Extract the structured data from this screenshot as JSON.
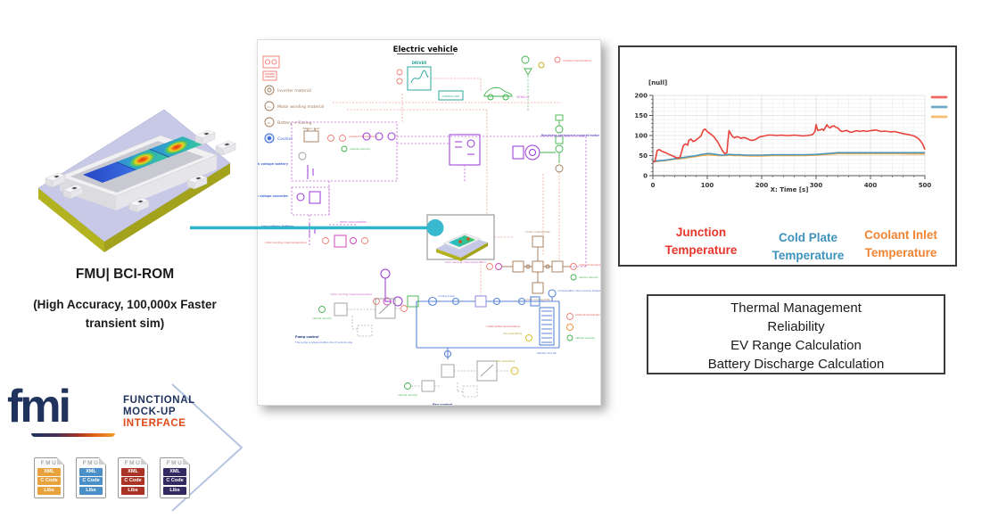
{
  "module_visual": {
    "caption": "FMU| BCI-ROM",
    "subcaption_line1": "(High Accuracy, 100,000x Faster",
    "subcaption_line2": "transient sim)"
  },
  "fmi": {
    "wordmark": "fmi",
    "tagline_line1": "FUNCTIONAL",
    "tagline_line2": "MOCK-UP",
    "tagline_line3": "INTERFACE",
    "navy_color": "#20335c",
    "accent_color": "#e04818",
    "files": [
      {
        "header": "FMU",
        "rows": [
          "XML",
          "C Code",
          "Libs"
        ],
        "color": "#e8a23c"
      },
      {
        "header": "FMU",
        "rows": [
          "XML",
          "C Code",
          "Libs"
        ],
        "color": "#4a8fc7"
      },
      {
        "header": "FMU",
        "rows": [
          "XML",
          "C Code",
          "Libs"
        ],
        "color": "#aa3326"
      },
      {
        "header": "FMU",
        "rows": [
          "XML",
          "C Code",
          "Libs"
        ],
        "color": "#322a60"
      }
    ]
  },
  "schematic": {
    "title": "Electric vehicle",
    "legend": [
      {
        "label": "Inverter material"
      },
      {
        "label": "Motor winding material"
      },
      {
        "label": "Battery + Casing"
      },
      {
        "label": "Coolant"
      }
    ],
    "labels": {
      "driver": "DRIVER",
      "vehicle": "VEHICLE",
      "control_unit": "CONTROL UNIT",
      "battery_heat": "Battery heat",
      "ambient_temperature": "ambient temperature",
      "vehicle_velocity": "vehicle velocity",
      "high_voltage_battery": "High voltage battery",
      "low_voltage_converter": "Low voltage converter",
      "low_voltage_battery": "Low voltage battery",
      "other_consumption": "other consumption",
      "motor": "Brushless permanent magnet motor",
      "motor_winding_mass_temperature": "motor winding mass temperature",
      "motor_cooling_plate": "motor cooling plate",
      "outlet_water_temperature": "outlet water temperature",
      "compensation_tank": "compensation tank volume temperature",
      "cooling_pump": "cooling pump",
      "radiator_and_fan": "radiator and fan",
      "fan_operating": "Fan operating",
      "fan_control": "Fan control",
      "fan_note": "The fan is stopped after 10s of vehicle stop",
      "pump_control": "Pump control",
      "pump_note": "The pump is stopped after 10s of vehicle stop"
    }
  },
  "chart": {
    "unit_label": "[null]",
    "x_axis_label": "X: Time [s]",
    "series_labels": [
      {
        "line1": "Junction",
        "line2": "Temperature",
        "color": "#e8352b"
      },
      {
        "line1": "Cold Plate",
        "line2": "Temperature",
        "color": "#3e93bd"
      },
      {
        "line1": "Coolant Inlet",
        "line2": "Temperature",
        "color": "#f08432"
      }
    ]
  },
  "chart_data": {
    "type": "line",
    "title": "",
    "xlabel": "X: Time [s]",
    "ylabel": "[null]",
    "xlim": [
      0,
      500
    ],
    "ylim": [
      0,
      200
    ],
    "x_ticks": [
      0,
      100,
      200,
      300,
      400,
      500
    ],
    "y_ticks": [
      0,
      50,
      100,
      150,
      200
    ],
    "grid": true,
    "legend_position": "right-outside",
    "series": [
      {
        "name": "Junction Temperature",
        "color": "#e8433a",
        "points": [
          [
            0,
            35
          ],
          [
            4,
            36
          ],
          [
            8,
            63
          ],
          [
            12,
            65
          ],
          [
            16,
            61
          ],
          [
            22,
            58
          ],
          [
            30,
            53
          ],
          [
            38,
            48
          ],
          [
            45,
            44
          ],
          [
            50,
            46
          ],
          [
            53,
            60
          ],
          [
            56,
            75
          ],
          [
            60,
            79
          ],
          [
            64,
            76
          ],
          [
            66,
            88
          ],
          [
            70,
            91
          ],
          [
            74,
            85
          ],
          [
            78,
            87
          ],
          [
            82,
            92
          ],
          [
            88,
            98
          ],
          [
            93,
            114
          ],
          [
            96,
            116
          ],
          [
            100,
            110
          ],
          [
            104,
            106
          ],
          [
            108,
            102
          ],
          [
            112,
            97
          ],
          [
            116,
            90
          ],
          [
            120,
            82
          ],
          [
            124,
            72
          ],
          [
            128,
            62
          ],
          [
            132,
            55
          ],
          [
            136,
            57
          ],
          [
            138,
            88
          ],
          [
            140,
            112
          ],
          [
            143,
            105
          ],
          [
            146,
            98
          ],
          [
            150,
            94
          ],
          [
            154,
            97
          ],
          [
            158,
            96
          ],
          [
            162,
            93
          ],
          [
            166,
            95
          ],
          [
            170,
            94
          ],
          [
            174,
            92
          ],
          [
            178,
            89
          ],
          [
            182,
            88
          ],
          [
            186,
            89
          ],
          [
            190,
            91
          ],
          [
            194,
            95
          ],
          [
            198,
            97
          ],
          [
            205,
            99
          ],
          [
            212,
            101
          ],
          [
            220,
            101
          ],
          [
            228,
            100
          ],
          [
            236,
            101
          ],
          [
            244,
            100
          ],
          [
            252,
            100
          ],
          [
            260,
            101
          ],
          [
            268,
            100
          ],
          [
            276,
            99
          ],
          [
            284,
            100
          ],
          [
            290,
            101
          ],
          [
            294,
            103
          ],
          [
            298,
            110
          ],
          [
            300,
            127
          ],
          [
            303,
            113
          ],
          [
            307,
            114
          ],
          [
            311,
            116
          ],
          [
            314,
            113
          ],
          [
            317,
            120
          ],
          [
            320,
            127
          ],
          [
            323,
            121
          ],
          [
            326,
            119
          ],
          [
            329,
            123
          ],
          [
            333,
            124
          ],
          [
            336,
            121
          ],
          [
            340,
            119
          ],
          [
            344,
            113
          ],
          [
            348,
            110
          ],
          [
            352,
            111
          ],
          [
            356,
            113
          ],
          [
            360,
            110
          ],
          [
            364,
            108
          ],
          [
            368,
            109
          ],
          [
            372,
            111
          ],
          [
            376,
            112
          ],
          [
            380,
            110
          ],
          [
            384,
            111
          ],
          [
            388,
            112
          ],
          [
            392,
            110
          ],
          [
            396,
            111
          ],
          [
            400,
            112
          ],
          [
            405,
            113
          ],
          [
            410,
            114
          ],
          [
            415,
            112
          ],
          [
            420,
            110
          ],
          [
            426,
            111
          ],
          [
            432,
            110
          ],
          [
            438,
            109
          ],
          [
            444,
            110
          ],
          [
            450,
            108
          ],
          [
            456,
            106
          ],
          [
            462,
            104
          ],
          [
            468,
            103
          ],
          [
            474,
            101
          ],
          [
            480,
            99
          ],
          [
            484,
            96
          ],
          [
            488,
            92
          ],
          [
            491,
            88
          ],
          [
            494,
            83
          ],
          [
            496,
            78
          ],
          [
            498,
            72
          ],
          [
            500,
            65
          ]
        ]
      },
      {
        "name": "Cold Plate Temperature",
        "color": "#4b96bb",
        "points": [
          [
            0,
            35
          ],
          [
            10,
            37
          ],
          [
            20,
            38
          ],
          [
            30,
            40
          ],
          [
            40,
            42
          ],
          [
            50,
            44
          ],
          [
            60,
            46
          ],
          [
            70,
            48
          ],
          [
            80,
            50
          ],
          [
            90,
            53
          ],
          [
            100,
            55
          ],
          [
            105,
            55
          ],
          [
            110,
            54
          ],
          [
            115,
            53
          ],
          [
            120,
            52
          ],
          [
            125,
            51
          ],
          [
            130,
            51
          ],
          [
            135,
            52
          ],
          [
            140,
            53
          ],
          [
            150,
            52
          ],
          [
            160,
            52
          ],
          [
            170,
            51
          ],
          [
            180,
            51
          ],
          [
            200,
            51
          ],
          [
            220,
            52
          ],
          [
            240,
            52
          ],
          [
            260,
            52
          ],
          [
            280,
            52
          ],
          [
            300,
            53
          ],
          [
            310,
            54
          ],
          [
            320,
            55
          ],
          [
            330,
            56
          ],
          [
            340,
            57
          ],
          [
            350,
            57
          ],
          [
            375,
            57
          ],
          [
            400,
            57
          ],
          [
            425,
            57
          ],
          [
            450,
            57
          ],
          [
            475,
            57
          ],
          [
            500,
            57
          ]
        ]
      },
      {
        "name": "Coolant Inlet Temperature",
        "color": "#f2ae4e",
        "points": [
          [
            0,
            34
          ],
          [
            10,
            36
          ],
          [
            20,
            37
          ],
          [
            30,
            39
          ],
          [
            40,
            41
          ],
          [
            50,
            42
          ],
          [
            60,
            44
          ],
          [
            70,
            46
          ],
          [
            80,
            48
          ],
          [
            90,
            50
          ],
          [
            100,
            52
          ],
          [
            110,
            51
          ],
          [
            120,
            50
          ],
          [
            130,
            50
          ],
          [
            140,
            51
          ],
          [
            150,
            50
          ],
          [
            160,
            50
          ],
          [
            180,
            49
          ],
          [
            200,
            49
          ],
          [
            220,
            50
          ],
          [
            240,
            50
          ],
          [
            260,
            50
          ],
          [
            280,
            50
          ],
          [
            300,
            51
          ],
          [
            310,
            52
          ],
          [
            320,
            53
          ],
          [
            330,
            54
          ],
          [
            340,
            55
          ],
          [
            350,
            55
          ],
          [
            375,
            55
          ],
          [
            400,
            55
          ],
          [
            425,
            55
          ],
          [
            450,
            55
          ],
          [
            475,
            54
          ],
          [
            500,
            54
          ]
        ]
      }
    ]
  },
  "benefits": {
    "lines": [
      "Thermal Management",
      "Reliability",
      "EV Range Calculation",
      "Battery Discharge Calculation"
    ]
  }
}
